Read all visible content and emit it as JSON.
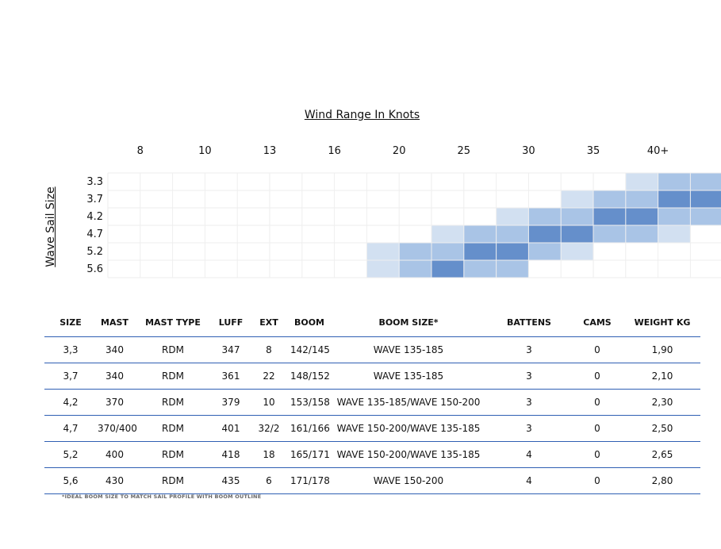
{
  "chart_data": {
    "type": "heatmap",
    "title": "Wind Range In Knots",
    "ylabel": "Wave Sail Size",
    "x_ticks": [
      "8",
      "10",
      "13",
      "16",
      "20",
      "25",
      "30",
      "35",
      "40+"
    ],
    "y_categories": [
      "3.3",
      "3.7",
      "4.2",
      "4.7",
      "5.2",
      "5.6"
    ],
    "color_scale": [
      "#d2e0f1",
      "#a9c4e6",
      "#658fcb"
    ],
    "grid": true,
    "rows": [
      {
        "size": "3.3",
        "levels": [
          0,
          0,
          0,
          0,
          0,
          0,
          0,
          0,
          0,
          0,
          0,
          0,
          0,
          0,
          0,
          0,
          1,
          2,
          2,
          3
        ]
      },
      {
        "size": "3.7",
        "levels": [
          0,
          0,
          0,
          0,
          0,
          0,
          0,
          0,
          0,
          0,
          0,
          0,
          0,
          0,
          1,
          2,
          2,
          3,
          3,
          2
        ]
      },
      {
        "size": "4.2",
        "levels": [
          0,
          0,
          0,
          0,
          0,
          0,
          0,
          0,
          0,
          0,
          0,
          0,
          1,
          2,
          2,
          3,
          3,
          2,
          2,
          1
        ]
      },
      {
        "size": "4.7",
        "levels": [
          0,
          0,
          0,
          0,
          0,
          0,
          0,
          0,
          0,
          0,
          1,
          2,
          2,
          3,
          3,
          2,
          2,
          1,
          0,
          0
        ]
      },
      {
        "size": "5.2",
        "levels": [
          0,
          0,
          0,
          0,
          0,
          0,
          0,
          0,
          1,
          2,
          2,
          3,
          3,
          2,
          1,
          0,
          0,
          0,
          0,
          0
        ]
      },
      {
        "size": "5.6",
        "levels": [
          0,
          0,
          0,
          0,
          0,
          0,
          0,
          0,
          1,
          2,
          3,
          2,
          2,
          0,
          0,
          0,
          0,
          0,
          0,
          0
        ]
      }
    ]
  },
  "table": {
    "headers": [
      "SIZE",
      "MAST",
      "MAST TYPE",
      "LUFF",
      "EXT",
      "BOOM",
      "BOOM SIZE*",
      "BATTENS",
      "CAMS",
      "WEIGHT KG"
    ],
    "rows": [
      [
        "3,3",
        "340",
        "RDM",
        "347",
        "8",
        "142/145",
        "WAVE 135-185",
        "3",
        "0",
        "1,90"
      ],
      [
        "3,7",
        "340",
        "RDM",
        "361",
        "22",
        "148/152",
        "WAVE 135-185",
        "3",
        "0",
        "2,10"
      ],
      [
        "4,2",
        "370",
        "RDM",
        "379",
        "10",
        "153/158",
        "WAVE 135-185/WAVE 150-200",
        "3",
        "0",
        "2,30"
      ],
      [
        "4,7",
        "370/400",
        "RDM",
        "401",
        "32/2",
        "161/166",
        "WAVE 150-200/WAVE 135-185",
        "3",
        "0",
        "2,50"
      ],
      [
        "5,2",
        "400",
        "RDM",
        "418",
        "18",
        "165/171",
        "WAVE 150-200/WAVE 135-185",
        "4",
        "0",
        "2,65"
      ],
      [
        "5,6",
        "430",
        "RDM",
        "435",
        "6",
        "171/178",
        "WAVE 150-200",
        "4",
        "0",
        "2,80"
      ]
    ]
  },
  "footnote": "*IDEAL BOOM SIZE TO MATCH SAIL PROFILE WITH BOOM OUTLINE"
}
